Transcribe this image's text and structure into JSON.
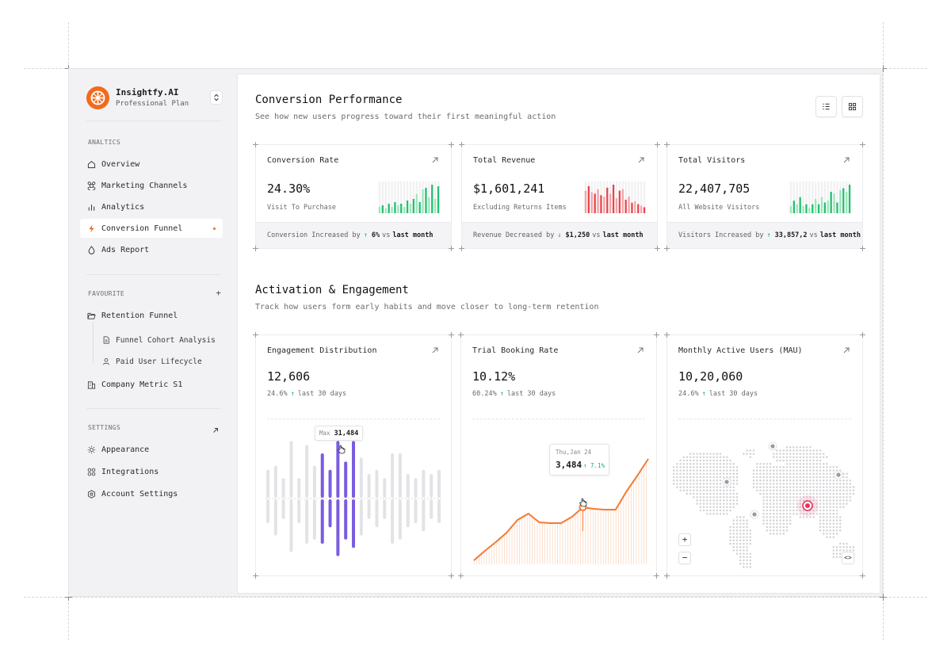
{
  "brand": {
    "name": "Insightfy.AI",
    "plan": "Professional Plan"
  },
  "sidebar": {
    "analytics_heading": "ANALTICS",
    "analytics_items": [
      {
        "label": "Overview",
        "icon": "home-icon"
      },
      {
        "label": "Marketing Channels",
        "icon": "command-icon"
      },
      {
        "label": "Analytics",
        "icon": "bar-chart-icon"
      },
      {
        "label": "Conversion Funnel",
        "icon": "lightning-icon",
        "active": true
      },
      {
        "label": "Ads Report",
        "icon": "drop-icon"
      }
    ],
    "favourite_heading": "FAVOURITE",
    "favourite_action": "+",
    "favourite_folder": "Retention Funnel",
    "favourite_subitems": [
      "Funnel Cohort Analysis",
      "Paid User Lifecycle"
    ],
    "favourite_metric": "Company Metric S1",
    "settings_heading": "SETTINGS",
    "settings_items": [
      "Appearance",
      "Integrations",
      "Account Settings"
    ]
  },
  "conversion": {
    "title": "Conversion Performance",
    "subtitle": "See how new users progress toward their first meaningful action",
    "cards": [
      {
        "title": "Conversion Rate",
        "value": "24.30%",
        "caption": "Visit To Purchase",
        "foot_prefix": "Conversion Increased by",
        "foot_arrow": "↑",
        "foot_value": "6%",
        "foot_vs": "vs",
        "foot_period": "last month",
        "trend": "up",
        "spark": [
          4,
          5,
          3,
          6,
          4,
          7,
          5,
          6,
          4,
          8,
          6,
          9,
          12,
          7,
          15,
          16,
          10,
          18,
          9,
          17
        ]
      },
      {
        "title": "Total Revenue",
        "value": "$1,601,241",
        "caption": "Excluding Returns Items",
        "foot_prefix": "Revenue Decreased by",
        "foot_arrow": "↓",
        "foot_value": "$1,250",
        "foot_vs": "vs",
        "foot_period": "last month",
        "trend": "down",
        "spark": [
          15,
          18,
          14,
          13,
          16,
          12,
          11,
          17,
          13,
          19,
          10,
          15,
          16,
          9,
          11,
          7,
          8,
          6,
          5,
          4
        ]
      },
      {
        "title": "Total Visitors",
        "value": "22,407,705",
        "caption": "All Website Visitors",
        "foot_prefix": "Visitors Increased by",
        "foot_arrow": "↑",
        "foot_value": "33,857,2",
        "foot_vs": "vs",
        "foot_period": "last month",
        "trend": "up",
        "spark": [
          4,
          7,
          5,
          9,
          4,
          5,
          3,
          5,
          8,
          5,
          9,
          6,
          7,
          12,
          11,
          6,
          13,
          14,
          12,
          16
        ]
      }
    ]
  },
  "activation": {
    "title": "Activation & Engagement",
    "subtitle": "Track how users form early habits and move closer to long-term retention",
    "engagement": {
      "title": "Engagement Distribution",
      "value": "12,606",
      "change": "24.6%",
      "arrow": "↑",
      "period": "last 30 days",
      "tooltip_label": "Max",
      "tooltip_value": "31,484",
      "bars": [
        {
          "up": 6,
          "down": 5,
          "hl": false
        },
        {
          "up": 7,
          "down": 8,
          "hl": false
        },
        {
          "up": 4,
          "down": 4,
          "hl": false
        },
        {
          "up": 13,
          "down": 12,
          "hl": false
        },
        {
          "up": 4,
          "down": 5,
          "hl": false
        },
        {
          "up": 12,
          "down": 10,
          "hl": false
        },
        {
          "up": 7,
          "down": 9,
          "hl": false
        },
        {
          "up": 10,
          "down": 10,
          "hl": true
        },
        {
          "up": 6,
          "down": 6,
          "hl": true
        },
        {
          "up": 13,
          "down": 13,
          "hl": true
        },
        {
          "up": 8,
          "down": 9,
          "hl": true
        },
        {
          "up": 13,
          "down": 11,
          "hl": true
        },
        {
          "up": 9,
          "down": 8,
          "hl": false
        },
        {
          "up": 5,
          "down": 4,
          "hl": false
        },
        {
          "up": 6,
          "down": 6,
          "hl": false
        },
        {
          "up": 4,
          "down": 4,
          "hl": false
        },
        {
          "up": 10,
          "down": 10,
          "hl": false
        },
        {
          "up": 10,
          "down": 9,
          "hl": false
        },
        {
          "up": 5,
          "down": 6,
          "hl": false
        },
        {
          "up": 4,
          "down": 5,
          "hl": false
        },
        {
          "up": 6,
          "down": 7,
          "hl": false
        },
        {
          "up": 5,
          "down": 4,
          "hl": false
        },
        {
          "up": 6,
          "down": 5,
          "hl": false
        }
      ],
      "highlight_color": "#7b5ce0",
      "base_color": "#e3e3e6"
    },
    "booking": {
      "title": "Trial Booking Rate",
      "value": "10.12%",
      "change": "60.24%",
      "arrow": "↑",
      "period": "last 30 days",
      "tooltip_date": "Thu,Jan 24",
      "tooltip_value": "3,484",
      "tooltip_change": "↑ 7.1%",
      "line": [
        5,
        17,
        28,
        40,
        56,
        64,
        53,
        52,
        52,
        60,
        72,
        70,
        69,
        69,
        92,
        112,
        133
      ],
      "highlight_index": 10,
      "color": "#f47a34"
    },
    "mau": {
      "title": "Monthly Active Users (MAU)",
      "value": "10,20,060",
      "change": "24.6%",
      "arrow": "↑",
      "period": "last 30 days",
      "zoom_in": "+",
      "zoom_out": "−",
      "embed": "<>",
      "marker_color": "#e5335b"
    }
  }
}
